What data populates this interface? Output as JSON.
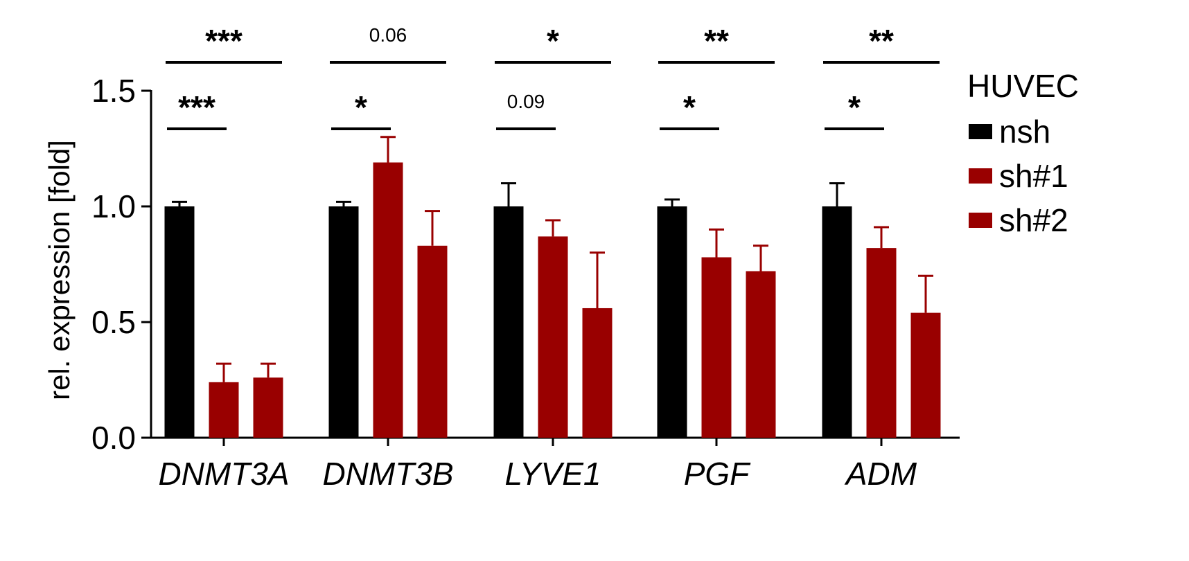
{
  "chart_data": {
    "type": "bar",
    "ylabel": "rel. expression [fold]",
    "ylim": [
      0,
      1.5
    ],
    "yticks": [
      "0.0",
      "0.5",
      "1.0",
      "1.5"
    ],
    "categories": [
      "DNMT3A",
      "DNMT3B",
      "LYVE1",
      "PGF",
      "ADM"
    ],
    "legend": {
      "title": "HUVEC",
      "placement": "right"
    },
    "series": [
      {
        "name": "nsh",
        "color": "#000000",
        "values": [
          1.0,
          1.0,
          1.0,
          1.0,
          1.0
        ],
        "errors": [
          0.02,
          0.02,
          0.1,
          0.03,
          0.1
        ]
      },
      {
        "name": "sh#1",
        "color": "#990000",
        "values": [
          0.24,
          1.19,
          0.87,
          0.78,
          0.82
        ],
        "errors": [
          0.08,
          0.11,
          0.07,
          0.12,
          0.09
        ]
      },
      {
        "name": "sh#2",
        "color": "#990000",
        "values": [
          0.26,
          0.83,
          0.56,
          0.72,
          0.54
        ],
        "errors": [
          0.06,
          0.15,
          0.24,
          0.11,
          0.16
        ]
      }
    ],
    "significance": [
      {
        "upper": "***",
        "lower": "***"
      },
      {
        "upper": "0.06",
        "lower": "*"
      },
      {
        "upper": "*",
        "lower": "0.09"
      },
      {
        "upper": "**",
        "lower": "*"
      },
      {
        "upper": "**",
        "lower": "*"
      }
    ]
  }
}
